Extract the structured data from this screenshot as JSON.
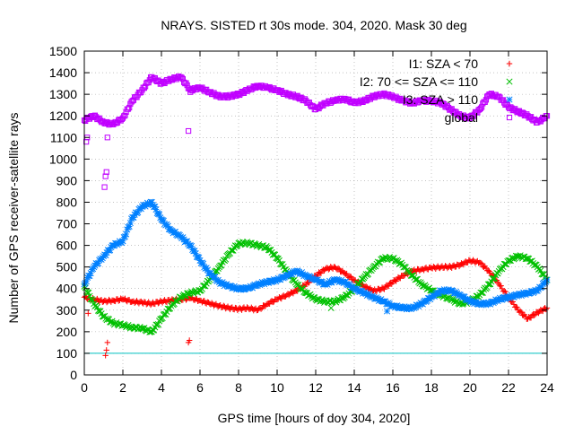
{
  "chart_data": {
    "type": "scatter",
    "title": "NRAYS. SISTED rt 30s mode. 304, 2020. Mask 30 deg",
    "xlabel": "GPS time [hours of doy 304, 2020]",
    "ylabel": "Number of GPS receiver-satellite rays",
    "xlim": [
      0,
      24
    ],
    "ylim": [
      0,
      1500
    ],
    "xticks": [
      0,
      2,
      4,
      6,
      8,
      10,
      12,
      14,
      16,
      18,
      20,
      22,
      24
    ],
    "yticks": [
      0,
      100,
      200,
      300,
      400,
      500,
      600,
      700,
      800,
      900,
      1000,
      1100,
      1200,
      1300,
      1400,
      1500
    ],
    "grid": true,
    "legend_position": "top-right",
    "reference_line": {
      "y": 100,
      "color": "#00c0c0"
    },
    "series": [
      {
        "name": "I1: SZA < 70",
        "color": "#ff0000",
        "marker": "+",
        "x": [
          0,
          0.5,
          1,
          1.5,
          2,
          2.5,
          3,
          3.5,
          4,
          4.5,
          5,
          5.5,
          6,
          6.5,
          7,
          7.5,
          8,
          8.5,
          9,
          9.5,
          10,
          10.5,
          11,
          11.5,
          12,
          12.5,
          13,
          13.5,
          14,
          14.5,
          15,
          15.5,
          16,
          16.5,
          17,
          17.5,
          18,
          18.5,
          19,
          19.5,
          20,
          20.5,
          21,
          21.5,
          22,
          22.5,
          23,
          23.5,
          24
        ],
        "y": [
          360,
          350,
          340,
          345,
          350,
          340,
          335,
          330,
          340,
          345,
          350,
          355,
          345,
          330,
          320,
          310,
          305,
          310,
          300,
          330,
          350,
          370,
          390,
          420,
          460,
          490,
          500,
          470,
          440,
          410,
          390,
          400,
          430,
          460,
          480,
          490,
          495,
          500,
          500,
          510,
          530,
          520,
          480,
          420,
          360,
          300,
          260,
          290,
          310
        ]
      },
      {
        "name": "I2: 70 <= SZA <= 110",
        "color": "#00c000",
        "marker": "x",
        "x": [
          0,
          0.5,
          1,
          1.5,
          2,
          2.5,
          3,
          3.5,
          4,
          4.5,
          5,
          5.5,
          6,
          6.5,
          7,
          7.5,
          8,
          8.5,
          9,
          9.5,
          10,
          10.5,
          11,
          11.5,
          12,
          12.5,
          13,
          13.5,
          14,
          14.5,
          15,
          15.5,
          16,
          16.5,
          17,
          17.5,
          18,
          18.5,
          19,
          19.5,
          20,
          20.5,
          21,
          21.5,
          22,
          22.5,
          23,
          23.5,
          24
        ],
        "y": [
          410,
          330,
          270,
          240,
          230,
          220,
          215,
          200,
          260,
          320,
          360,
          380,
          390,
          440,
          500,
          560,
          610,
          610,
          600,
          590,
          540,
          480,
          420,
          380,
          350,
          340,
          340,
          360,
          400,
          450,
          500,
          540,
          540,
          510,
          460,
          420,
          390,
          370,
          350,
          330,
          340,
          370,
          420,
          480,
          530,
          550,
          540,
          500,
          440
        ]
      },
      {
        "name": "I3: SZA > 110",
        "color": "#0080ff",
        "marker": "*",
        "x": [
          0,
          0.5,
          1,
          1.5,
          2,
          2.5,
          3,
          3.5,
          4,
          4.5,
          5,
          5.5,
          6,
          6.5,
          7,
          7.5,
          8,
          8.5,
          9,
          9.5,
          10,
          10.5,
          11,
          11.5,
          12,
          12.5,
          13,
          13.5,
          14,
          14.5,
          15,
          15.5,
          16,
          16.5,
          17,
          17.5,
          18,
          18.5,
          19,
          19.5,
          20,
          20.5,
          21,
          21.5,
          22,
          22.5,
          23,
          23.5,
          24
        ],
        "y": [
          420,
          500,
          550,
          600,
          620,
          730,
          780,
          800,
          720,
          670,
          640,
          600,
          530,
          470,
          430,
          410,
          400,
          400,
          420,
          430,
          440,
          460,
          480,
          460,
          440,
          420,
          440,
          430,
          400,
          380,
          360,
          340,
          320,
          310,
          310,
          330,
          360,
          390,
          390,
          370,
          340,
          330,
          330,
          350,
          360,
          370,
          380,
          390,
          440
        ]
      },
      {
        "name": "global",
        "color": "#c000ff",
        "marker": "square",
        "x": [
          0,
          0.5,
          1,
          1.5,
          2,
          2.5,
          3,
          3.5,
          4,
          4.5,
          5,
          5.5,
          6,
          6.5,
          7,
          7.5,
          8,
          8.5,
          9,
          9.5,
          10,
          10.5,
          11,
          11.5,
          12,
          12.5,
          13,
          13.5,
          14,
          14.5,
          15,
          15.5,
          16,
          16.5,
          17,
          17.5,
          18,
          18.5,
          19,
          19.5,
          20,
          20.5,
          21,
          21.5,
          22,
          22.5,
          23,
          23.5,
          24
        ],
        "y": [
          1180,
          1200,
          1170,
          1160,
          1190,
          1270,
          1320,
          1380,
          1350,
          1370,
          1380,
          1320,
          1330,
          1310,
          1290,
          1290,
          1300,
          1320,
          1340,
          1330,
          1320,
          1300,
          1290,
          1270,
          1230,
          1260,
          1270,
          1280,
          1260,
          1270,
          1290,
          1300,
          1290,
          1270,
          1260,
          1270,
          1270,
          1260,
          1230,
          1200,
          1190,
          1230,
          1300,
          1290,
          1240,
          1220,
          1200,
          1170,
          1200
        ]
      }
    ],
    "outliers": {
      "I1: SZA < 70": {
        "x": [
          0.2,
          1.1,
          1.15,
          1.2,
          5.4,
          5.45
        ],
        "y": [
          285,
          90,
          115,
          150,
          150,
          160
        ]
      },
      "I2: 70 <= SZA <= 110": {
        "x": [
          12.8
        ],
        "y": [
          310
        ]
      },
      "I3: SZA > 110": {
        "x": [
          15.7
        ],
        "y": [
          295
        ]
      },
      "global": {
        "x": [
          0.1,
          0.15,
          1.05,
          1.1,
          1.15,
          1.2,
          5.4,
          5.5,
          5.55
        ],
        "y": [
          1080,
          1100,
          870,
          920,
          940,
          1100,
          1130,
          1310,
          1320
        ]
      }
    }
  }
}
